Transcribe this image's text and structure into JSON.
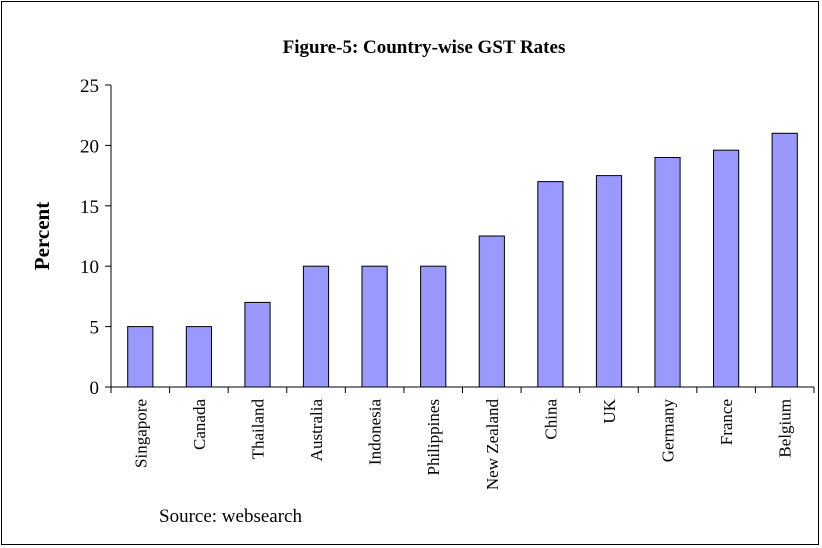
{
  "chart_data": {
    "type": "bar",
    "title": "Figure-5: Country-wise GST Rates",
    "ylabel": "Percent",
    "xlabel": "",
    "categories": [
      "Singapore",
      "Canada",
      "Thailand",
      "Australia",
      "Indonesia",
      "Philippines",
      "New Zealand",
      "China",
      "UK",
      "Germany",
      "France",
      "Belgium"
    ],
    "values": [
      5,
      5,
      7,
      10,
      10,
      10,
      12.5,
      17,
      17.5,
      19,
      19.6,
      21
    ],
    "ylim": [
      0,
      25
    ],
    "yticks": [
      "0",
      "5",
      "10",
      "15",
      "20",
      "25"
    ],
    "grid": false,
    "legend": "none",
    "bar_color": "#9999ff",
    "source": "Source: websearch"
  }
}
